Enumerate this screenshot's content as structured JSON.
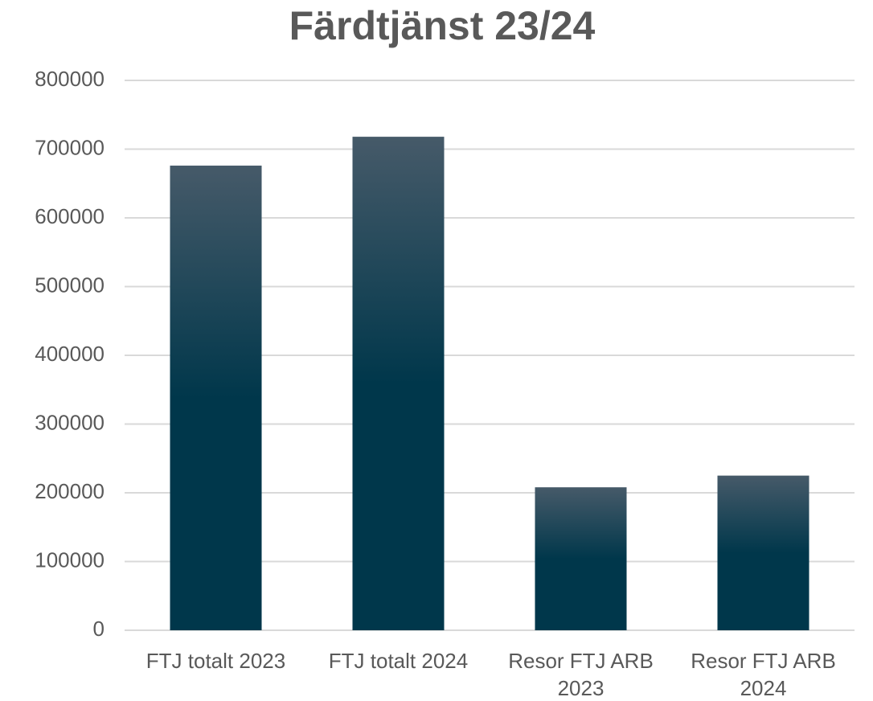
{
  "chart_data": {
    "type": "bar",
    "title": "Färdtjänst 23/24",
    "categories": [
      "FTJ totalt 2023",
      "FTJ totalt 2024",
      "Resor FTJ ARB 2023",
      "Resor FTJ ARB 2024"
    ],
    "values": [
      676000,
      718000,
      208000,
      225000
    ],
    "color": "#00374b",
    "ylim": [
      0,
      800000
    ],
    "yticks": [
      0,
      100000,
      200000,
      300000,
      400000,
      500000,
      600000,
      700000,
      800000
    ],
    "grid": true
  }
}
